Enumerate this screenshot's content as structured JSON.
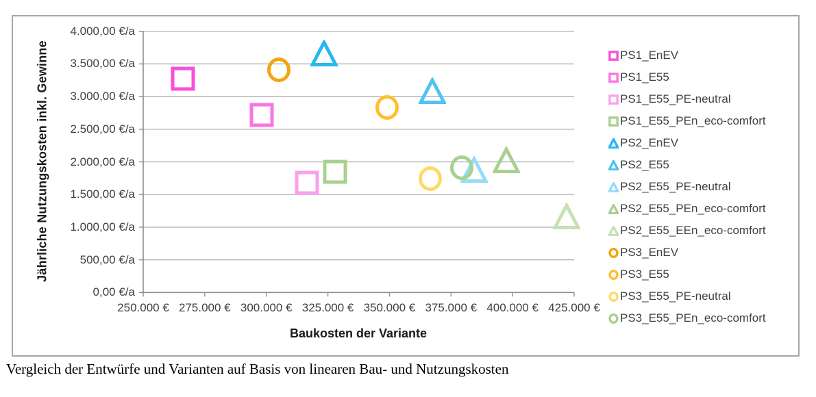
{
  "caption": "Vergleich der Entwürfe und Varianten auf Basis von linearen Bau- und Nutzungskosten",
  "chart_data": {
    "type": "scatter",
    "title": "",
    "xlabel": "Baukosten der Variante",
    "ylabel": "Jährliche Nutzungskosten inkl. Gewinne",
    "xlim": [
      250000,
      425000
    ],
    "ylim": [
      0,
      4000
    ],
    "x_tick_step": 25000,
    "y_tick_step": 500,
    "grid": "horizontal",
    "legend_position": "right",
    "x_ticks": [
      "250.000 €",
      "275.000 €",
      "300.000 €",
      "325.000 €",
      "350.000 €",
      "375.000 €",
      "400.000 €",
      "425.000 €"
    ],
    "x_tick_values": [
      250000,
      275000,
      300000,
      325000,
      350000,
      375000,
      400000,
      425000
    ],
    "y_ticks": [
      "0,00 €/a",
      "500,00 €/a",
      "1.000,00 €/a",
      "1.500,00 €/a",
      "2.000,00 €/a",
      "2.500,00 €/a",
      "3.000,00 €/a",
      "3.500,00 €/a",
      "4.000,00 €/a"
    ],
    "y_tick_values": [
      0,
      500,
      1000,
      1500,
      2000,
      2500,
      3000,
      3500,
      4000
    ],
    "axis_color": "#8c8c8c",
    "gridline_color": "#a6a6a6",
    "series": [
      {
        "name": "PS1_EnEV",
        "marker": "square",
        "color": "#F94FDC",
        "points": [
          [
            266000,
            3270
          ]
        ]
      },
      {
        "name": "PS1_E55",
        "marker": "square",
        "color": "#FA74E4",
        "points": [
          [
            298000,
            2715
          ]
        ]
      },
      {
        "name": "PS1_E55_PE-neutral",
        "marker": "square",
        "color": "#FB9FEC",
        "points": [
          [
            316500,
            1685
          ]
        ]
      },
      {
        "name": "PS1_E55_PEn_eco-comfort",
        "marker": "square",
        "color": "#A9D18E",
        "points": [
          [
            328000,
            1850
          ]
        ]
      },
      {
        "name": "PS2_EnEV",
        "marker": "triangle",
        "color": "#29B6EF",
        "points": [
          [
            323500,
            3660
          ]
        ]
      },
      {
        "name": "PS2_E55",
        "marker": "triangle",
        "color": "#4FC3F1",
        "points": [
          [
            367500,
            3080
          ]
        ]
      },
      {
        "name": "PS2_E55_PE-neutral",
        "marker": "triangle",
        "color": "#95DCF7",
        "points": [
          [
            384500,
            1875
          ]
        ]
      },
      {
        "name": "PS2_E55_PEn_eco-comfort",
        "marker": "triangle",
        "color": "#A9D18E",
        "points": [
          [
            397500,
            2030
          ]
        ]
      },
      {
        "name": "PS2_E55_EEn_eco-comfort",
        "marker": "triangle",
        "color": "#C6E0B4",
        "points": [
          [
            422000,
            1170
          ]
        ]
      },
      {
        "name": "PS3_EnEV",
        "marker": "circle",
        "color": "#F2A50C",
        "points": [
          [
            305000,
            3410
          ]
        ]
      },
      {
        "name": "PS3_E55",
        "marker": "circle",
        "color": "#FFBF2E",
        "points": [
          [
            349000,
            2830
          ]
        ]
      },
      {
        "name": "PS3_E55_PE-neutral",
        "marker": "circle",
        "color": "#FFD966",
        "points": [
          [
            366500,
            1740
          ]
        ]
      },
      {
        "name": "PS3_E55_PEn_eco-comfort",
        "marker": "circle",
        "color": "#A9D18E",
        "points": [
          [
            379500,
            1910
          ]
        ]
      }
    ]
  }
}
